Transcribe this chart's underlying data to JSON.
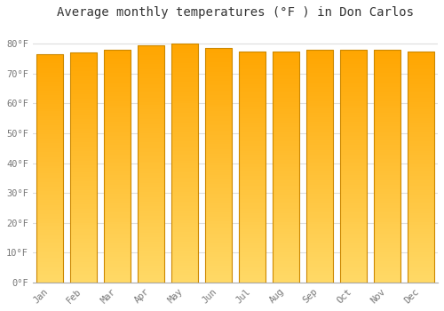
{
  "title": "Average monthly temperatures (°F ) in Don Carlos",
  "months": [
    "Jan",
    "Feb",
    "Mar",
    "Apr",
    "May",
    "Jun",
    "Jul",
    "Aug",
    "Sep",
    "Oct",
    "Nov",
    "Dec"
  ],
  "values": [
    76.5,
    77.0,
    78.0,
    79.5,
    80.0,
    78.5,
    77.5,
    77.5,
    78.0,
    78.0,
    78.0,
    77.5
  ],
  "bar_color_top": "#FFA500",
  "bar_color_bottom": "#FFD966",
  "bar_edge_color": "#CC8800",
  "background_color": "#FFFFFF",
  "plot_bg_color": "#FFFFFF",
  "grid_color": "#DDDDDD",
  "ylim": [
    0,
    86
  ],
  "yticks": [
    0,
    10,
    20,
    30,
    40,
    50,
    60,
    70,
    80
  ],
  "title_fontsize": 10,
  "tick_fontsize": 7.5,
  "tick_color": "#777777",
  "title_color": "#333333",
  "bar_width": 0.78
}
